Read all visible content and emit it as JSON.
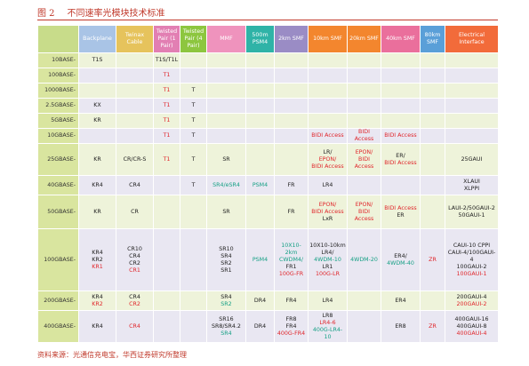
{
  "header": {
    "figure": "图 2",
    "title": "不同速率光模块技术标准"
  },
  "table": {
    "columns": [
      "Backplane",
      "Twinax Cable",
      "Twisted Pair (1 Pair)",
      "Twisted Pair (4 Pair)",
      "MMF",
      "500m PSM4",
      "2km SMF",
      "10km SMF",
      "20km SMF",
      "40km SMF",
      "80km SMF",
      "Electrical Interface"
    ],
    "column_colors": [
      "#a9c4e6",
      "#e6c35c",
      "#e27fb3",
      "#8dc63f",
      "#ef93bd",
      "#2fb3a7",
      "#9a8cc5",
      "#f3862e",
      "#f3862e",
      "#ea6f9c",
      "#5a9fd8",
      "#f26b3a"
    ],
    "rows": [
      {
        "label": "10BASE-",
        "cells": [
          [
            "T1S"
          ],
          [],
          [
            "T1S/T1L"
          ],
          [],
          [],
          [],
          [],
          [],
          [],
          [],
          [],
          []
        ]
      },
      {
        "label": "100BASE-",
        "cells": [
          [],
          [],
          [
            {
              "text": "T1",
              "color": "#e0262b"
            }
          ],
          [],
          [],
          [],
          [],
          [],
          [],
          [],
          [],
          []
        ]
      },
      {
        "label": "1000BASE-",
        "cells": [
          [],
          [],
          [
            {
              "text": "T1",
              "color": "#e0262b"
            }
          ],
          [
            "T"
          ],
          [],
          [],
          [],
          [],
          [],
          [],
          [],
          []
        ]
      },
      {
        "label": "2.5GBASE-",
        "cells": [
          [
            "KX"
          ],
          [],
          [
            {
              "text": "T1",
              "color": "#e0262b"
            }
          ],
          [
            "T"
          ],
          [],
          [],
          [],
          [],
          [],
          [],
          [],
          []
        ]
      },
      {
        "label": "5GBASE-",
        "cells": [
          [
            "KR"
          ],
          [],
          [
            {
              "text": "T1",
              "color": "#e0262b"
            }
          ],
          [
            "T"
          ],
          [],
          [],
          [],
          [],
          [],
          [],
          [],
          []
        ]
      },
      {
        "label": "10GBASE-",
        "cells": [
          [],
          [],
          [
            {
              "text": "T1",
              "color": "#e0262b"
            }
          ],
          [
            "T"
          ],
          [],
          [],
          [],
          [
            {
              "text": "BIDI Access",
              "color": "#e0262b"
            }
          ],
          [
            {
              "text": "BIDI Access",
              "color": "#e0262b"
            }
          ],
          [
            {
              "text": "BIDI Access",
              "color": "#e0262b"
            }
          ],
          [],
          []
        ]
      },
      {
        "label": "25GBASE-",
        "cells": [
          [
            "KR"
          ],
          [
            "CR/CR-S"
          ],
          [
            {
              "text": "T1",
              "color": "#e0262b"
            }
          ],
          [
            "T"
          ],
          [
            "SR"
          ],
          [],
          [],
          [
            "LR/",
            {
              "text": "EPON/",
              "color": "#e0262b"
            },
            {
              "text": "BIDI Access",
              "color": "#e0262b"
            }
          ],
          [
            {
              "text": "EPON/",
              "color": "#e0262b"
            },
            {
              "text": "BIDI Access",
              "color": "#e0262b"
            }
          ],
          [
            "ER/",
            {
              "text": "BIDI Access",
              "color": "#e0262b"
            }
          ],
          [],
          [
            "25GAUI"
          ]
        ]
      },
      {
        "label": "40GBASE-",
        "cells": [
          [
            "KR4"
          ],
          [
            "CR4"
          ],
          [],
          [
            "T"
          ],
          [
            {
              "text": "SR4/eSR4",
              "color": "#16a085"
            }
          ],
          [
            {
              "text": "PSM4",
              "color": "#16a085"
            }
          ],
          [
            "FR"
          ],
          [
            "LR4"
          ],
          [],
          [],
          [],
          [
            "XLAUI",
            "XLPPI"
          ]
        ]
      },
      {
        "label": "50GBASE-",
        "cells": [
          [
            "KR"
          ],
          [
            "CR"
          ],
          [],
          [],
          [
            "SR"
          ],
          [],
          [
            "FR"
          ],
          [
            {
              "text": "EPON/",
              "color": "#e0262b"
            },
            {
              "text": "BIDI Access",
              "color": "#e0262b"
            },
            "LxR"
          ],
          [
            {
              "text": "EPON/",
              "color": "#e0262b"
            },
            {
              "text": "BIDI Access",
              "color": "#e0262b"
            }
          ],
          [
            {
              "text": "BIDI Access",
              "color": "#e0262b"
            },
            "ER"
          ],
          [],
          [
            "LAUI-2/50GAUI-2",
            "50GAUI-1"
          ]
        ]
      },
      {
        "label": "100GBASE-",
        "cells": [
          [
            "KR4",
            "KR2",
            {
              "text": "KR1",
              "color": "#e0262b"
            }
          ],
          [
            "CR10",
            "CR4",
            "CR2",
            {
              "text": "CR1",
              "color": "#e0262b"
            }
          ],
          [],
          [],
          [
            "SR10",
            "SR4",
            "SR2",
            "SR1"
          ],
          [
            {
              "text": "PSM4",
              "color": "#16a085"
            }
          ],
          [
            {
              "text": "10X10-2km",
              "color": "#16a085"
            },
            {
              "text": "CWDM4/",
              "color": "#16a085"
            },
            "FR1",
            {
              "text": "100G-FR",
              "color": "#e0262b"
            }
          ],
          [
            "10X10-10km",
            "LR4/",
            {
              "text": "4WDM-10",
              "color": "#16a085"
            },
            "LR1",
            {
              "text": "100G-LR",
              "color": "#e0262b"
            }
          ],
          [
            {
              "text": "4WDM-20",
              "color": "#16a085"
            }
          ],
          [
            "ER4/",
            {
              "text": "4WDM-40",
              "color": "#16a085"
            }
          ],
          [
            {
              "text": "ZR",
              "color": "#e0262b"
            }
          ],
          [
            "CAUI-10 CPPI",
            "CAUI-4/100GAUI-4",
            "100GAUI-2",
            {
              "text": "100GAUI-1",
              "color": "#e0262b"
            }
          ]
        ]
      },
      {
        "label": "200GBASE-",
        "cells": [
          [
            "KR4",
            {
              "text": "KR2",
              "color": "#e0262b"
            }
          ],
          [
            "CR4",
            {
              "text": "CR2",
              "color": "#e0262b"
            }
          ],
          [],
          [],
          [
            "SR4",
            {
              "text": "SR2",
              "color": "#16a085"
            }
          ],
          [
            "DR4"
          ],
          [
            "FR4"
          ],
          [
            "LR4"
          ],
          [],
          [
            "ER4"
          ],
          [],
          [
            "200GAUI-4",
            {
              "text": "200GAUI-2",
              "color": "#e0262b"
            }
          ]
        ]
      },
      {
        "label": "400GBASE-",
        "cells": [
          [
            "KR4"
          ],
          [
            {
              "text": "CR4",
              "color": "#e0262b"
            }
          ],
          [],
          [],
          [
            "SR16",
            "SR8/SR4.2",
            {
              "text": "SR4",
              "color": "#16a085"
            }
          ],
          [
            "DR4"
          ],
          [
            "FR8",
            "FR4",
            {
              "text": "400G-FR4",
              "color": "#e0262b"
            }
          ],
          [
            "LR8",
            {
              "text": "LR4-6",
              "color": "#e0262b"
            },
            {
              "text": "400G-LR4-10",
              "color": "#16a085"
            }
          ],
          [],
          [
            "ER8"
          ],
          [
            {
              "text": "ZR",
              "color": "#e0262b"
            }
          ],
          [
            "400GAUI-16",
            "400GAUI-8",
            {
              "text": "400GAUI-4",
              "color": "#e0262b"
            }
          ]
        ]
      }
    ]
  },
  "source": "资料来源：光通信充电宝，华西证券研究所整理"
}
